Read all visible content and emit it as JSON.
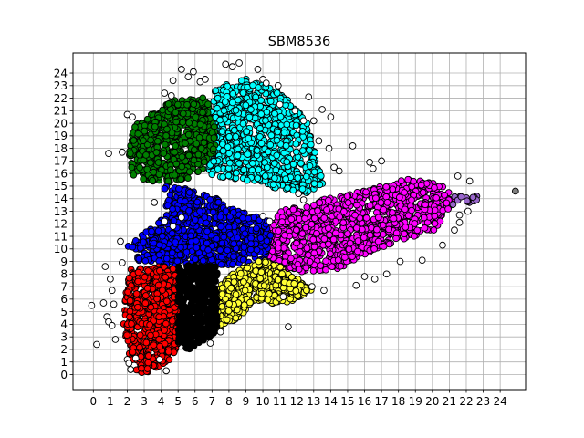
{
  "chart_data": {
    "type": "scatter",
    "title": "SBM8536",
    "xlabel": "",
    "ylabel": "",
    "xlim": [
      -1.2,
      25.5
    ],
    "ylim": [
      -1.2,
      25.6
    ],
    "x_ticks": [
      0,
      1,
      2,
      3,
      4,
      5,
      6,
      7,
      8,
      9,
      10,
      11,
      12,
      13,
      14,
      15,
      16,
      17,
      18,
      19,
      20,
      21,
      22,
      23,
      24
    ],
    "y_ticks": [
      0,
      1,
      2,
      3,
      4,
      5,
      6,
      7,
      8,
      9,
      10,
      11,
      12,
      13,
      14,
      15,
      16,
      17,
      18,
      19,
      20,
      21,
      22,
      23,
      24
    ],
    "grid": true,
    "legend": "none",
    "point_stroke": "#000000",
    "clusters": [
      {
        "color": "#00ffff",
        "label_hint": "cyan",
        "region": [
          [
            7.2,
            22.8
          ],
          [
            9,
            23.6
          ],
          [
            11,
            22.6
          ],
          [
            12.6,
            20.2
          ],
          [
            13.2,
            17
          ],
          [
            13.6,
            15
          ],
          [
            12.5,
            14.4
          ],
          [
            11.2,
            14.7
          ],
          [
            9.5,
            15.3
          ],
          [
            8,
            15.6
          ],
          [
            6.8,
            15.9
          ],
          [
            6.6,
            19
          ]
        ],
        "count": 900
      },
      {
        "color": "#008000",
        "label_hint": "green",
        "region": [
          [
            3.4,
            20.7
          ],
          [
            4.6,
            21.8
          ],
          [
            6.4,
            22.2
          ],
          [
            7.1,
            21
          ],
          [
            7.2,
            18
          ],
          [
            6.6,
            16.3
          ],
          [
            5.5,
            15.5
          ],
          [
            4.4,
            15.3
          ],
          [
            2.3,
            15.5
          ],
          [
            2.1,
            17.8
          ],
          [
            2.4,
            19.8
          ]
        ],
        "count": 650
      },
      {
        "color": "#ff00ff",
        "label_hint": "magenta",
        "region": [
          [
            11,
            13
          ],
          [
            14.3,
            14.2
          ],
          [
            16.5,
            14.8
          ],
          [
            18.5,
            15.6
          ],
          [
            20.5,
            15.2
          ],
          [
            21.3,
            14
          ],
          [
            20.3,
            11.6
          ],
          [
            17.5,
            10.3
          ],
          [
            16.2,
            9.7
          ],
          [
            14.5,
            8.4
          ],
          [
            12,
            8.1
          ],
          [
            10.3,
            8.6
          ],
          [
            10.2,
            10.8
          ]
        ],
        "count": 1100
      },
      {
        "color": "#0000ff",
        "label_hint": "blue",
        "region": [
          [
            4.2,
            15
          ],
          [
            6,
            14.7
          ],
          [
            8.5,
            13.3
          ],
          [
            10.3,
            12.2
          ],
          [
            10.5,
            11.2
          ],
          [
            10.1,
            9.1
          ],
          [
            8,
            8.7
          ],
          [
            5,
            8.6
          ],
          [
            2.7,
            9
          ],
          [
            2,
            10.3
          ],
          [
            4.3,
            12.7
          ]
        ],
        "count": 750
      },
      {
        "color": "#ffff33",
        "label_hint": "yellow",
        "region": [
          [
            7.2,
            6.9
          ],
          [
            8.4,
            8.2
          ],
          [
            10.2,
            9.3
          ],
          [
            11.2,
            8.5
          ],
          [
            13,
            6.8
          ],
          [
            11.5,
            5.7
          ],
          [
            9.5,
            5.6
          ],
          [
            8.4,
            4.4
          ],
          [
            7.2,
            3.3
          ],
          [
            7.1,
            4.8
          ]
        ],
        "count": 550
      },
      {
        "color": "#ff0000",
        "label_hint": "red",
        "region": [
          [
            2.2,
            8.4
          ],
          [
            3.5,
            8.6
          ],
          [
            5,
            8.7
          ],
          [
            5,
            5.5
          ],
          [
            5.1,
            2.5
          ],
          [
            4.5,
            1.2
          ],
          [
            3.4,
            0.2
          ],
          [
            2.5,
            0.1
          ],
          [
            1.9,
            2.5
          ],
          [
            1.7,
            5
          ]
        ],
        "count": 650
      },
      {
        "color": "#000000",
        "label_hint": "black",
        "region": [
          [
            5,
            8.7
          ],
          [
            7.3,
            8.7
          ],
          [
            7.3,
            3.5
          ],
          [
            6.7,
            2.7
          ],
          [
            5.6,
            2
          ],
          [
            5,
            2.5
          ]
        ],
        "count": 420
      },
      {
        "color": "#9966cc",
        "label_hint": "purple",
        "region": [
          [
            21.2,
            14.6
          ],
          [
            22.8,
            14.2
          ],
          [
            22.8,
            13.7
          ],
          [
            21.2,
            13.5
          ]
        ],
        "count": 14
      }
    ],
    "outliers_color": "#ffffff",
    "outliers": [
      [
        -0.1,
        5.5
      ],
      [
        0.2,
        2.4
      ],
      [
        0.6,
        5.7
      ],
      [
        0.7,
        8.6
      ],
      [
        0.8,
        4.6
      ],
      [
        0.9,
        4.2
      ],
      [
        1,
        7.6
      ],
      [
        1.1,
        6.7
      ],
      [
        1.1,
        3.9
      ],
      [
        1.3,
        2.8
      ],
      [
        1.6,
        10.6
      ],
      [
        1.7,
        8.9
      ],
      [
        0.9,
        17.6
      ],
      [
        1.7,
        17.7
      ],
      [
        2,
        20.7
      ],
      [
        2.3,
        20.5
      ],
      [
        2,
        1.2
      ],
      [
        2.5,
        1.3
      ],
      [
        2.2,
        0.4
      ],
      [
        4.3,
        0.3
      ],
      [
        4.2,
        22.4
      ],
      [
        4.6,
        22.2
      ],
      [
        4.7,
        23.4
      ],
      [
        5.2,
        24.3
      ],
      [
        5.6,
        23.7
      ],
      [
        5.9,
        24.1
      ],
      [
        6.3,
        23.3
      ],
      [
        6.6,
        23.5
      ],
      [
        7.8,
        24.7
      ],
      [
        8.2,
        24.5
      ],
      [
        8.6,
        24.8
      ],
      [
        9.7,
        24.3
      ],
      [
        10,
        23.5
      ],
      [
        10.2,
        23.2
      ],
      [
        10.9,
        23
      ],
      [
        11,
        21.5
      ],
      [
        11.9,
        21
      ],
      [
        12.4,
        20.2
      ],
      [
        13,
        20.2
      ],
      [
        13.5,
        21.1
      ],
      [
        12.7,
        22.1
      ],
      [
        14,
        20.5
      ],
      [
        13.3,
        18.6
      ],
      [
        13.9,
        18
      ],
      [
        14.2,
        16.5
      ],
      [
        14.5,
        16.2
      ],
      [
        15.3,
        18.2
      ],
      [
        16.3,
        16.9
      ],
      [
        16.5,
        16.4
      ],
      [
        17,
        17
      ],
      [
        15.5,
        7.1
      ],
      [
        16,
        7.8
      ],
      [
        16.6,
        7.6
      ],
      [
        17.3,
        8
      ],
      [
        18.1,
        9
      ],
      [
        19.4,
        9.1
      ],
      [
        20.6,
        10.3
      ],
      [
        21.3,
        11.5
      ],
      [
        21.6,
        12.1
      ],
      [
        22.1,
        13
      ],
      [
        21.6,
        12.7
      ],
      [
        22.2,
        15.4
      ],
      [
        21.5,
        15.8
      ],
      [
        11.5,
        3.8
      ],
      [
        12.9,
        7
      ],
      [
        13.6,
        6.7
      ],
      [
        11.2,
        6.2
      ],
      [
        2.1,
        0.9
      ],
      [
        3.9,
        1.2
      ],
      [
        1.2,
        5.6
      ],
      [
        3.6,
        13.7
      ],
      [
        4.2,
        12.2
      ],
      [
        4.7,
        11.8
      ],
      [
        5.2,
        12.5
      ],
      [
        10,
        12.6
      ],
      [
        10.4,
        12.2
      ],
      [
        12.1,
        14.4
      ],
      [
        12.4,
        13.9
      ],
      [
        6.9,
        2.5
      ],
      [
        7.5,
        3.4
      ]
    ],
    "extra_points": [
      {
        "x": 24.9,
        "y": 14.6,
        "color": "#808080"
      },
      {
        "x": 22.6,
        "y": 13.9,
        "color": "#9966cc"
      },
      {
        "x": 22.4,
        "y": 14.1,
        "color": "#9966cc"
      }
    ]
  }
}
